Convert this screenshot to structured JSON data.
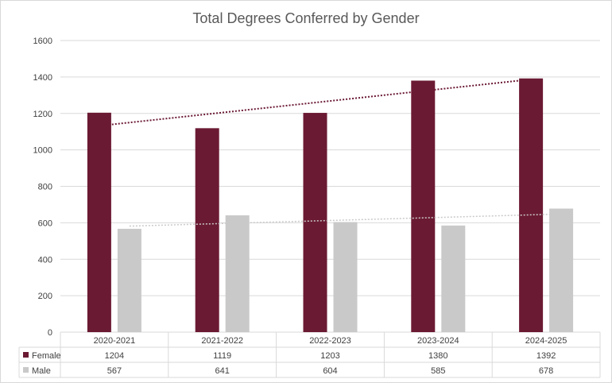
{
  "chart_data": {
    "type": "bar",
    "title": "Total Degrees Conferred by Gender",
    "categories": [
      "2020-2021",
      "2021-2022",
      "2022-2023",
      "2023-2024",
      "2024-2025"
    ],
    "series": [
      {
        "name": "Female",
        "values": [
          1204,
          1119,
          1203,
          1380,
          1392
        ],
        "color": "#6b1a33",
        "trendline": "linear",
        "trend_color": "#6b1a33"
      },
      {
        "name": "Male",
        "values": [
          567,
          641,
          604,
          585,
          678
        ],
        "color": "#c9c9c9",
        "trend_color": "#c9c9c9"
      }
    ],
    "ylim": [
      0,
      1600
    ],
    "y_ticks": [
      "0",
      "200",
      "400",
      "600",
      "800",
      "1000",
      "1200",
      "1400",
      "1600"
    ],
    "grid": true,
    "legend": "data-table",
    "data_table": true
  }
}
